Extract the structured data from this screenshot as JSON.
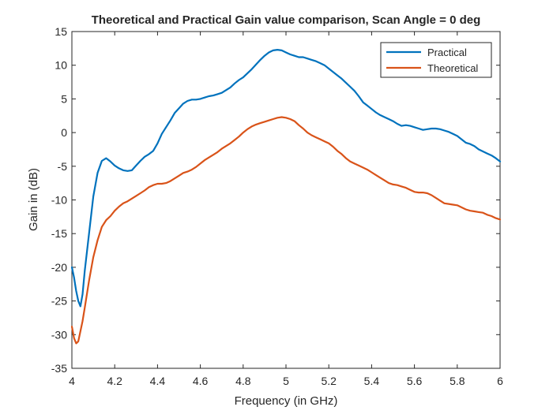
{
  "chart_data": {
    "type": "line",
    "title": "Theoretical and Practical Gain value comparison, Scan Angle = 0 deg",
    "xlabel": "Frequency (in GHz)",
    "ylabel": "Gain in (dB)",
    "xlim": [
      4,
      6
    ],
    "ylim": [
      -35,
      15
    ],
    "xticks": [
      4,
      4.2,
      4.4,
      4.6,
      4.8,
      5,
      5.2,
      5.4,
      5.6,
      5.8,
      6
    ],
    "xtick_labels": [
      "4",
      "4.2",
      "4.4",
      "4.6",
      "4.8",
      "5",
      "5.2",
      "5.4",
      "5.6",
      "5.8",
      "6"
    ],
    "yticks": [
      -35,
      -30,
      -25,
      -20,
      -15,
      -10,
      -5,
      0,
      5,
      10,
      15
    ],
    "ytick_labels": [
      "-35",
      "-30",
      "-25",
      "-20",
      "-15",
      "-10",
      "-5",
      "0",
      "5",
      "10",
      "15"
    ],
    "grid": false,
    "legend_position": "top-right",
    "series": [
      {
        "name": "Practical",
        "color": "#0072BD",
        "x": [
          4.0,
          4.01,
          4.02,
          4.03,
          4.04,
          4.05,
          4.06,
          4.08,
          4.1,
          4.12,
          4.14,
          4.16,
          4.18,
          4.2,
          4.22,
          4.24,
          4.26,
          4.28,
          4.3,
          4.32,
          4.34,
          4.36,
          4.38,
          4.4,
          4.42,
          4.44,
          4.46,
          4.48,
          4.5,
          4.52,
          4.54,
          4.56,
          4.58,
          4.6,
          4.62,
          4.64,
          4.66,
          4.68,
          4.7,
          4.72,
          4.74,
          4.76,
          4.78,
          4.8,
          4.82,
          4.84,
          4.86,
          4.88,
          4.9,
          4.92,
          4.94,
          4.96,
          4.98,
          5.0,
          5.02,
          5.04,
          5.06,
          5.08,
          5.1,
          5.12,
          5.14,
          5.16,
          5.18,
          5.2,
          5.22,
          5.24,
          5.26,
          5.28,
          5.3,
          5.32,
          5.34,
          5.36,
          5.38,
          5.4,
          5.42,
          5.44,
          5.46,
          5.48,
          5.5,
          5.52,
          5.54,
          5.56,
          5.58,
          5.6,
          5.62,
          5.64,
          5.66,
          5.68,
          5.7,
          5.72,
          5.74,
          5.76,
          5.78,
          5.8,
          5.82,
          5.84,
          5.86,
          5.88,
          5.9,
          5.92,
          5.94,
          5.96,
          5.98,
          6.0
        ],
        "y": [
          -20.0,
          -21.5,
          -23.5,
          -25.0,
          -25.8,
          -24.0,
          -20.5,
          -15.0,
          -9.5,
          -6.0,
          -4.2,
          -3.8,
          -4.3,
          -4.9,
          -5.3,
          -5.6,
          -5.7,
          -5.6,
          -4.9,
          -4.2,
          -3.6,
          -3.2,
          -2.7,
          -1.6,
          -0.2,
          0.8,
          1.8,
          2.9,
          3.6,
          4.3,
          4.7,
          4.9,
          4.9,
          5.0,
          5.2,
          5.4,
          5.5,
          5.7,
          5.9,
          6.3,
          6.7,
          7.3,
          7.8,
          8.2,
          8.8,
          9.4,
          10.1,
          10.8,
          11.4,
          11.9,
          12.2,
          12.3,
          12.2,
          11.9,
          11.6,
          11.4,
          11.2,
          11.2,
          11.0,
          10.8,
          10.6,
          10.3,
          10.0,
          9.5,
          9.0,
          8.5,
          8.0,
          7.4,
          6.8,
          6.2,
          5.4,
          4.5,
          4.0,
          3.5,
          3.0,
          2.6,
          2.3,
          2.0,
          1.7,
          1.3,
          1.0,
          1.1,
          1.0,
          0.8,
          0.6,
          0.4,
          0.5,
          0.6,
          0.6,
          0.5,
          0.3,
          0.1,
          -0.2,
          -0.5,
          -1.0,
          -1.5,
          -1.7,
          -2.0,
          -2.5,
          -2.8,
          -3.1,
          -3.4,
          -3.8,
          -4.3
        ]
      },
      {
        "name": "Theoretical",
        "color": "#D95319",
        "x": [
          4.0,
          4.01,
          4.02,
          4.03,
          4.04,
          4.05,
          4.06,
          4.08,
          4.1,
          4.12,
          4.14,
          4.16,
          4.18,
          4.2,
          4.22,
          4.24,
          4.26,
          4.28,
          4.3,
          4.32,
          4.34,
          4.36,
          4.38,
          4.4,
          4.42,
          4.44,
          4.46,
          4.48,
          4.5,
          4.52,
          4.54,
          4.56,
          4.58,
          4.6,
          4.62,
          4.64,
          4.66,
          4.68,
          4.7,
          4.72,
          4.74,
          4.76,
          4.78,
          4.8,
          4.82,
          4.84,
          4.86,
          4.88,
          4.9,
          4.92,
          4.94,
          4.96,
          4.98,
          5.0,
          5.02,
          5.04,
          5.06,
          5.08,
          5.1,
          5.12,
          5.14,
          5.16,
          5.18,
          5.2,
          5.22,
          5.24,
          5.26,
          5.28,
          5.3,
          5.32,
          5.34,
          5.36,
          5.38,
          5.4,
          5.42,
          5.44,
          5.46,
          5.48,
          5.5,
          5.52,
          5.54,
          5.56,
          5.58,
          5.6,
          5.62,
          5.64,
          5.66,
          5.68,
          5.7,
          5.72,
          5.74,
          5.76,
          5.78,
          5.8,
          5.82,
          5.84,
          5.86,
          5.88,
          5.9,
          5.92,
          5.94,
          5.96,
          5.98,
          6.0
        ],
        "y": [
          -28.8,
          -30.5,
          -31.3,
          -31.0,
          -29.5,
          -28.0,
          -26.0,
          -22.0,
          -18.5,
          -16.0,
          -14.0,
          -13.0,
          -12.4,
          -11.6,
          -11.0,
          -10.5,
          -10.2,
          -9.8,
          -9.4,
          -9.0,
          -8.6,
          -8.1,
          -7.8,
          -7.6,
          -7.6,
          -7.5,
          -7.2,
          -6.8,
          -6.4,
          -6.0,
          -5.8,
          -5.5,
          -5.1,
          -4.6,
          -4.1,
          -3.7,
          -3.3,
          -2.9,
          -2.4,
          -2.0,
          -1.6,
          -1.1,
          -0.6,
          0.0,
          0.5,
          0.9,
          1.2,
          1.4,
          1.6,
          1.8,
          2.0,
          2.2,
          2.3,
          2.2,
          2.0,
          1.7,
          1.1,
          0.6,
          0.0,
          -0.4,
          -0.7,
          -1.0,
          -1.3,
          -1.6,
          -2.1,
          -2.7,
          -3.2,
          -3.8,
          -4.3,
          -4.6,
          -4.9,
          -5.2,
          -5.5,
          -5.9,
          -6.3,
          -6.7,
          -7.1,
          -7.5,
          -7.7,
          -7.8,
          -8.0,
          -8.2,
          -8.5,
          -8.8,
          -8.9,
          -8.9,
          -9.0,
          -9.3,
          -9.7,
          -10.1,
          -10.5,
          -10.6,
          -10.7,
          -10.8,
          -11.1,
          -11.4,
          -11.6,
          -11.7,
          -11.8,
          -11.9,
          -12.2,
          -12.4,
          -12.7,
          -12.9
        ]
      }
    ]
  }
}
